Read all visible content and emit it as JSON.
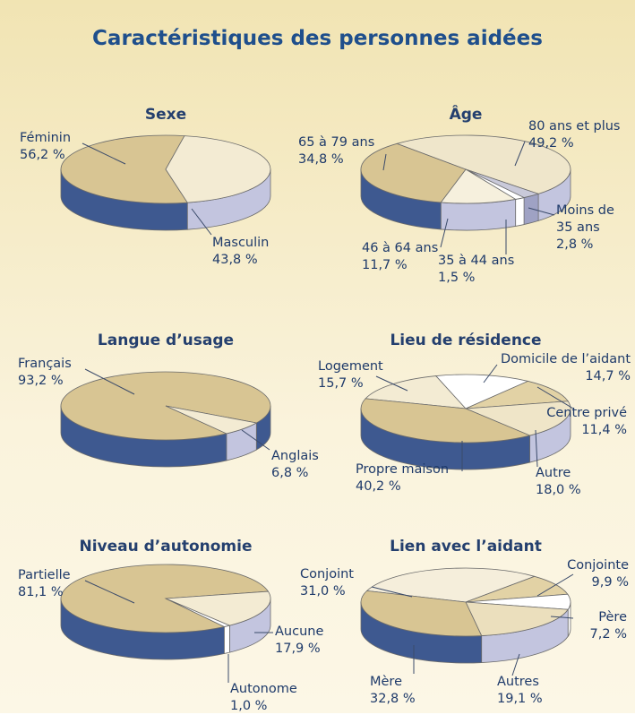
{
  "title": "Caractéristiques des personnes aidées",
  "chart_data": [
    {
      "type": "pie",
      "title": "Sexe",
      "categories": [
        "Féminin",
        "Masculin"
      ],
      "values": [
        56.2,
        43.8
      ],
      "value_labels": [
        "56,2 %",
        "43,8 %"
      ],
      "colors": [
        "#d8c593",
        "#f3ebd3"
      ],
      "side_colors": [
        "#3e5990",
        "#c3c5df"
      ]
    },
    {
      "type": "pie",
      "title": "Âge",
      "categories": [
        "80 ans et plus",
        "Moins de 35 ans",
        "35 à 44 ans",
        "46 à 64 ans",
        "65 à 79 ans"
      ],
      "values": [
        49.2,
        2.8,
        1.5,
        11.7,
        34.8
      ],
      "value_labels": [
        "49,2 %",
        "2,8 %",
        "1,5 %",
        "11,7 %",
        "34,8 %"
      ],
      "colors": [
        "#efe6cb",
        "#c9c9d9",
        "#ffffff",
        "#f6f0dd",
        "#d8c593"
      ],
      "side_colors": [
        "#c3c5df",
        "#9fa2c4",
        "#ffffff",
        "#c3c5df",
        "#3e5990"
      ]
    },
    {
      "type": "pie",
      "title": "Langue d’usage",
      "categories": [
        "Français",
        "Anglais"
      ],
      "values": [
        93.2,
        6.8
      ],
      "value_labels": [
        "93,2 %",
        "6,8 %"
      ],
      "colors": [
        "#d8c593",
        "#f3ebd3"
      ],
      "side_colors": [
        "#3e5990",
        "#c3c5df"
      ]
    },
    {
      "type": "pie",
      "title": "Lieu de résidence",
      "categories": [
        "Logement",
        "Domicile de l’aidant",
        "Centre privé",
        "Autre",
        "Propre maison"
      ],
      "values": [
        15.7,
        14.7,
        11.4,
        18.0,
        40.2
      ],
      "value_labels": [
        "15,7 %",
        "14,7 %",
        "11,4 %",
        "18,0 %",
        "40,2 %"
      ],
      "colors": [
        "#f3ebd3",
        "#ffffff",
        "#e2d2a5",
        "#efe5c8",
        "#d8c593"
      ],
      "side_colors": [
        "#c3c5df",
        "#ffffff",
        "#c3c5df",
        "#c3c5df",
        "#3e5990"
      ]
    },
    {
      "type": "pie",
      "title": "Niveau d’autonomie",
      "categories": [
        "Partielle",
        "Aucune",
        "Autonome"
      ],
      "values": [
        81.1,
        17.9,
        1.0
      ],
      "value_labels": [
        "81,1 %",
        "17,9 %",
        "1,0 %"
      ],
      "colors": [
        "#d8c593",
        "#f3ebd3",
        "#ffffff"
      ],
      "side_colors": [
        "#3e5990",
        "#c3c5df",
        "#ffffff"
      ]
    },
    {
      "type": "pie",
      "title": "Lien avec l’aidant",
      "categories": [
        "Conjoint",
        "Conjointe",
        "Père",
        "Autres",
        "Mère"
      ],
      "values": [
        31.0,
        9.9,
        7.2,
        19.1,
        32.8
      ],
      "value_labels": [
        "31,0 %",
        "9,9 %",
        "7,2 %",
        "19,1 %",
        "32,8 %"
      ],
      "colors": [
        "#f5eedb",
        "#e2d2a5",
        "#ffffff",
        "#ebdfbd",
        "#d8c593"
      ],
      "side_colors": [
        "#c3c5df",
        "#c3c5df",
        "#ffffff",
        "#c3c5df",
        "#3e5990"
      ]
    }
  ]
}
